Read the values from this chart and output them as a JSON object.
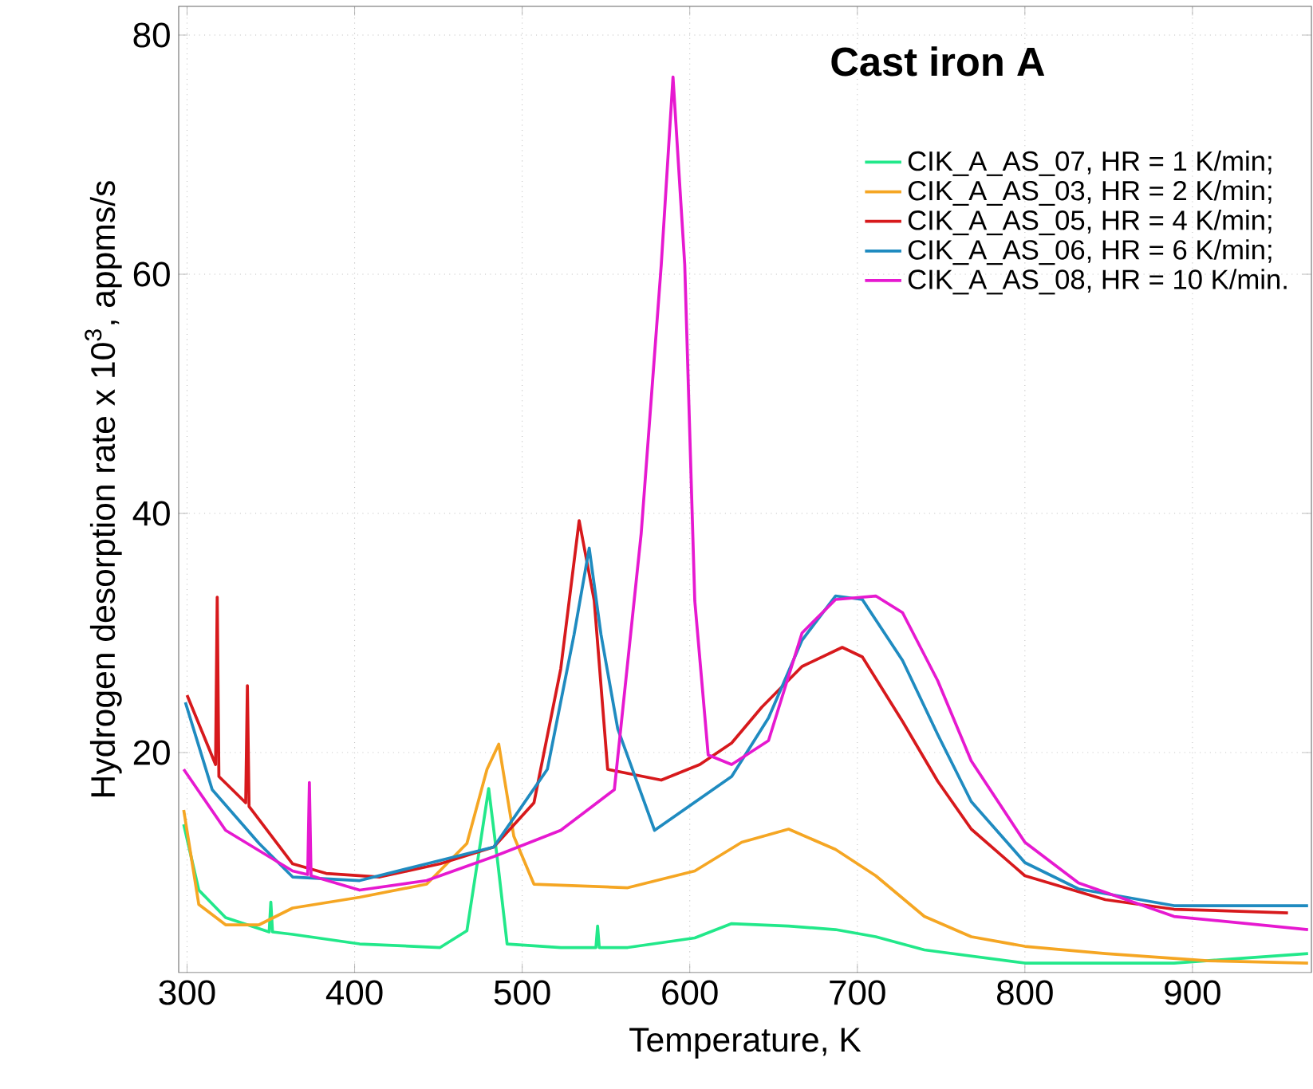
{
  "chart_data": {
    "type": "line",
    "title": "**Cast iron A**",
    "xlabel": "Temperature, K",
    "ylabel": "Hydrogen desorption rate x 10$^{3}$, appms/s",
    "xlim": [
      295,
      971
    ],
    "ylim": [
      1.6,
      82.4
    ],
    "xticks": [
      300,
      400,
      500,
      600,
      700,
      800,
      900
    ],
    "yticks": [
      20,
      40,
      60,
      80
    ],
    "grid": true,
    "legend": "top right",
    "marker": "none",
    "line_style": "solid",
    "series": [
      {
        "name": "CIK_A_AS_07, HR = 1 K/min;",
        "color": "#22e88a",
        "x": [
          298,
          307,
          323,
          349,
          350,
          351,
          363,
          403,
          451,
          467,
          475,
          480,
          485,
          491,
          523,
          544,
          545,
          546,
          563,
          603,
          625,
          659,
          687,
          711,
          740,
          800,
          889,
          969
        ],
        "values": [
          14,
          8.5,
          6.2,
          5,
          7.5,
          5,
          4.8,
          4,
          3.7,
          5.1,
          12.4,
          17,
          11.3,
          4,
          3.7,
          3.7,
          5.5,
          3.7,
          3.7,
          4.5,
          5.7,
          5.5,
          5.2,
          4.6,
          3.5,
          2.4,
          2.4,
          3.2
        ]
      },
      {
        "name": "CIK_A_AS_03, HR = 2 K/min;",
        "color": "#f5a623",
        "x": [
          298,
          307,
          323,
          343,
          363,
          403,
          443,
          467,
          479,
          486,
          495,
          507,
          563,
          603,
          631,
          659,
          687,
          711,
          740,
          768,
          800,
          848,
          909,
          969
        ],
        "values": [
          15.2,
          7.3,
          5.6,
          5.6,
          7,
          7.9,
          9,
          12.4,
          18.6,
          20.7,
          13,
          9,
          8.7,
          10.1,
          12.5,
          13.6,
          11.9,
          9.7,
          6.3,
          4.6,
          3.8,
          3.2,
          2.6,
          2.4
        ]
      },
      {
        "name": "CIK_A_AS_05, HR = 4 K/min;",
        "color": "#d7191c",
        "x": [
          300,
          317,
          318,
          319,
          335,
          336,
          337,
          363,
          383,
          415,
          451,
          483,
          507,
          523,
          534,
          543,
          551,
          583,
          606,
          625,
          643,
          667,
          691,
          703,
          727,
          748,
          768,
          800,
          848,
          889,
          957
        ],
        "values": [
          24.8,
          19,
          33,
          18,
          15.8,
          25.6,
          15.5,
          10.7,
          9.9,
          9.6,
          10.7,
          12.1,
          15.8,
          27,
          39.4,
          32.7,
          18.6,
          17.7,
          19,
          20.8,
          23.8,
          27.2,
          28.8,
          28,
          22.6,
          17.6,
          13.6,
          9.7,
          7.7,
          6.9,
          6.6
        ]
      },
      {
        "name": "CIK_A_AS_06, HR = 6 K/min;",
        "color": "#1f8bc0",
        "x": [
          299,
          315,
          343,
          363,
          403,
          443,
          483,
          515,
          531,
          540,
          547,
          557,
          579,
          625,
          647,
          667,
          687,
          703,
          727,
          748,
          768,
          800,
          832,
          889,
          969
        ],
        "values": [
          24.2,
          16.9,
          12.4,
          9.6,
          9.3,
          10.7,
          12.1,
          18.6,
          29.9,
          37.1,
          29.9,
          22,
          13.5,
          18,
          22.9,
          29.4,
          33.1,
          32.8,
          27.7,
          21.5,
          15.9,
          10.8,
          8.6,
          7.2,
          7.2
        ]
      },
      {
        "name": "CIK_A_AS_08, HR = 10 K/min.",
        "color": "#e619d0",
        "x": [
          298,
          323,
          363,
          372,
          373,
          374,
          403,
          443,
          483,
          523,
          555,
          571,
          583,
          590,
          597,
          603,
          611,
          625,
          647,
          667,
          687,
          711,
          727,
          748,
          768,
          800,
          832,
          889,
          969
        ],
        "values": [
          18.6,
          13.5,
          10.1,
          9.8,
          17.5,
          9.7,
          8.5,
          9.3,
          11.3,
          13.5,
          16.9,
          38.3,
          60.8,
          76.5,
          60.8,
          32.7,
          19.8,
          19,
          21,
          30,
          32.8,
          33.1,
          31.7,
          26,
          19.3,
          12.5,
          9.1,
          6.3,
          5.2
        ]
      }
    ]
  }
}
